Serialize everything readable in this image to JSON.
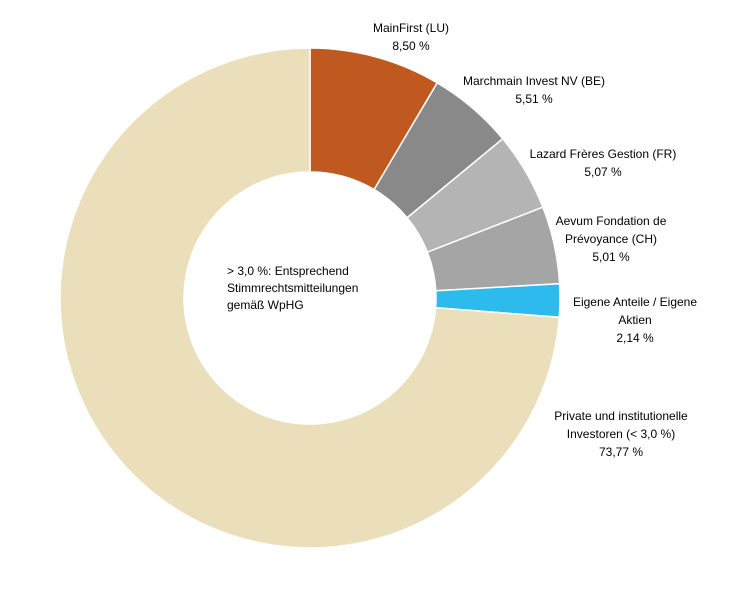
{
  "chart_data": {
    "type": "pie",
    "variant": "donut",
    "center_label": [
      "> 3,0 %: Entsprechend",
      "Stimmrechtsmitteilungen",
      "gemäß WpHG"
    ],
    "slices": [
      {
        "name_lines": [
          "MainFirst (LU)"
        ],
        "value": 8.5,
        "value_label": "8,50 %",
        "color": "#c0591f"
      },
      {
        "name_lines": [
          "Marchmain Invest NV (BE)"
        ],
        "value": 5.51,
        "value_label": "5,51 %",
        "color": "#898989"
      },
      {
        "name_lines": [
          "Lazard Frères Gestion (FR)"
        ],
        "value": 5.07,
        "value_label": "5,07 %",
        "color": "#b4b4b4"
      },
      {
        "name_lines": [
          "Aevum  Fondation de",
          "Prévoyance (CH)"
        ],
        "value": 5.01,
        "value_label": "5,01 %",
        "color": "#a5a5a5"
      },
      {
        "name_lines": [
          "Eigene Anteile / Eigene",
          "Aktien"
        ],
        "value": 2.14,
        "value_label": "2,14 %",
        "color": "#2dbbee"
      },
      {
        "name_lines": [
          "Private und institutionelle",
          "Investoren (< 3,0 %)"
        ],
        "value": 73.77,
        "value_label": "73,77 %",
        "color": "#ebdfbb"
      }
    ],
    "legend": "none",
    "start_angle": "12 o'clock",
    "direction": "clockwise"
  }
}
